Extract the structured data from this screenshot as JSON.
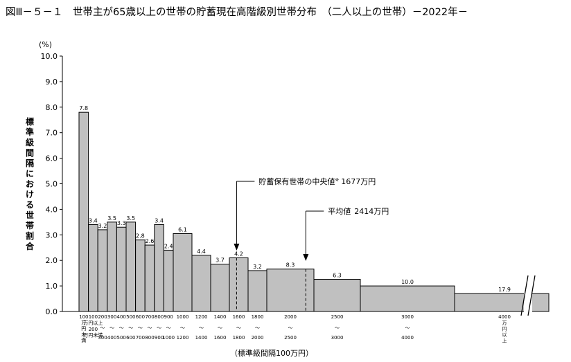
{
  "title": "図Ⅲ－５－１　世帯主が65歳以上の世帯の貯蓄現在高階級別世帯分布　（二人以上の世帯）－2022年－",
  "chart_data": {
    "type": "bar",
    "title": "図Ⅲ－５－１　世帯主が65歳以上の世帯の貯蓄現在高階級別世帯分布　（二人以上の世帯）－2022年－",
    "ylabel": "標準級間隔における世帯割合",
    "yunit": "(%)",
    "xlabel": "（標準級間隔100万円）",
    "ylim": [
      0,
      10
    ],
    "yticks": [
      "0.0",
      "1.0",
      "2.0",
      "3.0",
      "4.0",
      "5.0",
      "6.0",
      "7.0",
      "8.0",
      "9.0",
      "10.0"
    ],
    "grid": false,
    "bars": [
      {
        "lo": 0,
        "hi": 100,
        "value": 7.8,
        "label": "7.8",
        "bottom": "100\n万\n円\n未\n満"
      },
      {
        "lo": 100,
        "hi": 200,
        "value": 3.4,
        "label": "3.4",
        "top": "100",
        "mid": "万円以上",
        "bottom": "200\n万円未満"
      },
      {
        "lo": 200,
        "hi": 300,
        "value": 3.2,
        "label": "3.2",
        "top": "200",
        "mid": "〜",
        "bottom": "300"
      },
      {
        "lo": 300,
        "hi": 400,
        "value": 3.5,
        "label": "3.5",
        "top": "300",
        "mid": "〜",
        "bottom": "400"
      },
      {
        "lo": 400,
        "hi": 500,
        "value": 3.3,
        "label": "3.3",
        "top": "400",
        "mid": "〜",
        "bottom": "500"
      },
      {
        "lo": 500,
        "hi": 600,
        "value": 3.5,
        "label": "3.5",
        "top": "500",
        "mid": "〜",
        "bottom": "600"
      },
      {
        "lo": 600,
        "hi": 700,
        "value": 2.8,
        "label": "2.8",
        "top": "600",
        "mid": "〜",
        "bottom": "700"
      },
      {
        "lo": 700,
        "hi": 800,
        "value": 2.6,
        "label": "2.6",
        "top": "700",
        "mid": "〜",
        "bottom": "800"
      },
      {
        "lo": 800,
        "hi": 900,
        "value": 3.4,
        "label": "3.4",
        "top": "800",
        "mid": "〜",
        "bottom": "900"
      },
      {
        "lo": 900,
        "hi": 1000,
        "value": 2.4,
        "label": "2.4",
        "top": "900",
        "mid": "〜",
        "bottom": "1000"
      },
      {
        "lo": 1000,
        "hi": 1200,
        "value": 3.05,
        "label": "6.1",
        "top": "1000",
        "mid": "〜",
        "bottom": "1200"
      },
      {
        "lo": 1200,
        "hi": 1400,
        "value": 2.2,
        "label": "4.4",
        "top": "1200",
        "mid": "〜",
        "bottom": "1400"
      },
      {
        "lo": 1400,
        "hi": 1600,
        "value": 1.85,
        "label": "3.7",
        "top": "1400",
        "mid": "〜",
        "bottom": "1600"
      },
      {
        "lo": 1600,
        "hi": 1800,
        "value": 2.1,
        "label": "4.2",
        "top": "1600",
        "mid": "〜",
        "bottom": "1800"
      },
      {
        "lo": 1800,
        "hi": 2000,
        "value": 1.6,
        "label": "3.2",
        "top": "1800",
        "mid": "〜",
        "bottom": "2000"
      },
      {
        "lo": 2000,
        "hi": 2500,
        "value": 1.66,
        "label": "8.3",
        "top": "2000",
        "mid": "〜",
        "bottom": "2500"
      },
      {
        "lo": 2500,
        "hi": 3000,
        "value": 1.26,
        "label": "6.3",
        "top": "2500",
        "mid": "〜",
        "bottom": "3000"
      },
      {
        "lo": 3000,
        "hi": 4000,
        "value": 1.0,
        "label": "10.0",
        "top": "3000",
        "mid": "〜",
        "bottom": "4000"
      },
      {
        "lo": 4000,
        "hi": null,
        "value": 0.7,
        "label": "17.9",
        "top": "4000",
        "bottom": "万\n円\n以\n上"
      }
    ],
    "annotations": [
      {
        "text": "貯蓄保有世帯の中央値",
        "sup": "※",
        "value_text": "1677万円",
        "x": 1677
      },
      {
        "text": "平均値",
        "value_text": "2414万円",
        "x": 2414
      }
    ],
    "colors": {
      "bar_fill": "#c0c0c0",
      "bar_stroke": "#000000"
    }
  }
}
